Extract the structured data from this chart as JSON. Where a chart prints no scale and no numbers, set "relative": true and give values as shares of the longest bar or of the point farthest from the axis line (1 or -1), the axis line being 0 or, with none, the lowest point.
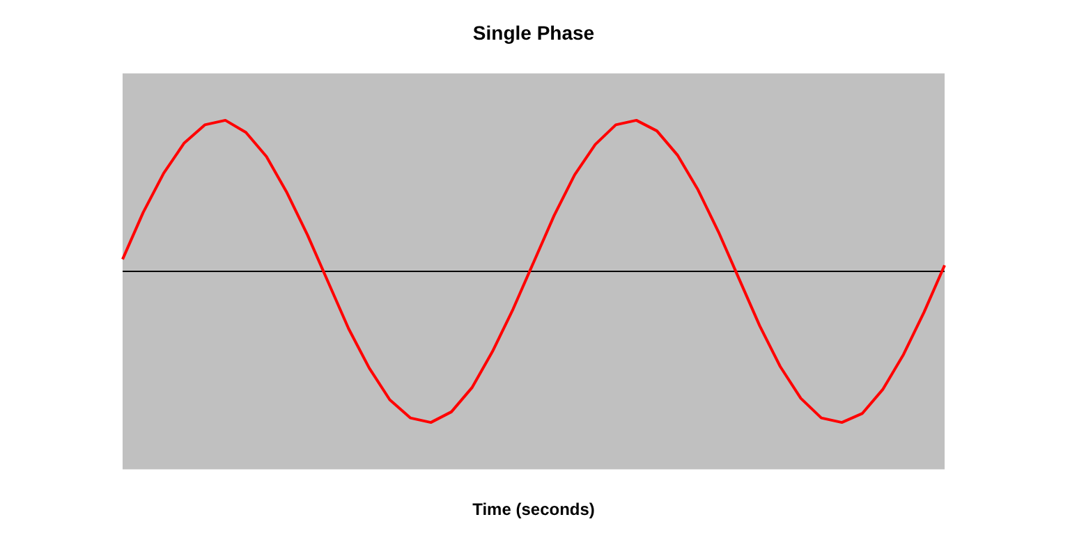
{
  "chart_data": {
    "type": "line",
    "title": "Single Phase",
    "xlabel": "Time (seconds)",
    "relative": true,
    "marker": "none",
    "line_style": "solid",
    "grid": false,
    "legend": false,
    "categories": [
      null,
      null,
      null,
      null,
      null,
      null,
      null,
      null,
      null,
      null,
      null,
      null,
      null,
      null,
      null,
      null,
      null,
      null,
      null,
      null,
      null,
      null,
      null,
      null,
      null,
      null,
      null,
      null,
      null,
      null,
      null,
      null,
      null,
      null,
      null,
      null,
      null,
      null,
      null,
      null,
      null
    ],
    "series": [
      {
        "color": "#ff0000",
        "values": [
          0.08,
          0.39,
          0.65,
          0.85,
          0.97,
          1.0,
          0.92,
          0.76,
          0.52,
          0.24,
          -0.07,
          -0.38,
          -0.64,
          -0.85,
          -0.97,
          -1.0,
          -0.93,
          -0.77,
          -0.53,
          -0.25,
          0.06,
          0.37,
          0.64,
          0.84,
          0.97,
          1.0,
          0.93,
          0.77,
          0.54,
          0.26,
          -0.05,
          -0.36,
          -0.63,
          -0.84,
          -0.97,
          -1.0,
          -0.94,
          -0.78,
          -0.55,
          -0.27,
          0.04
        ]
      }
    ]
  }
}
